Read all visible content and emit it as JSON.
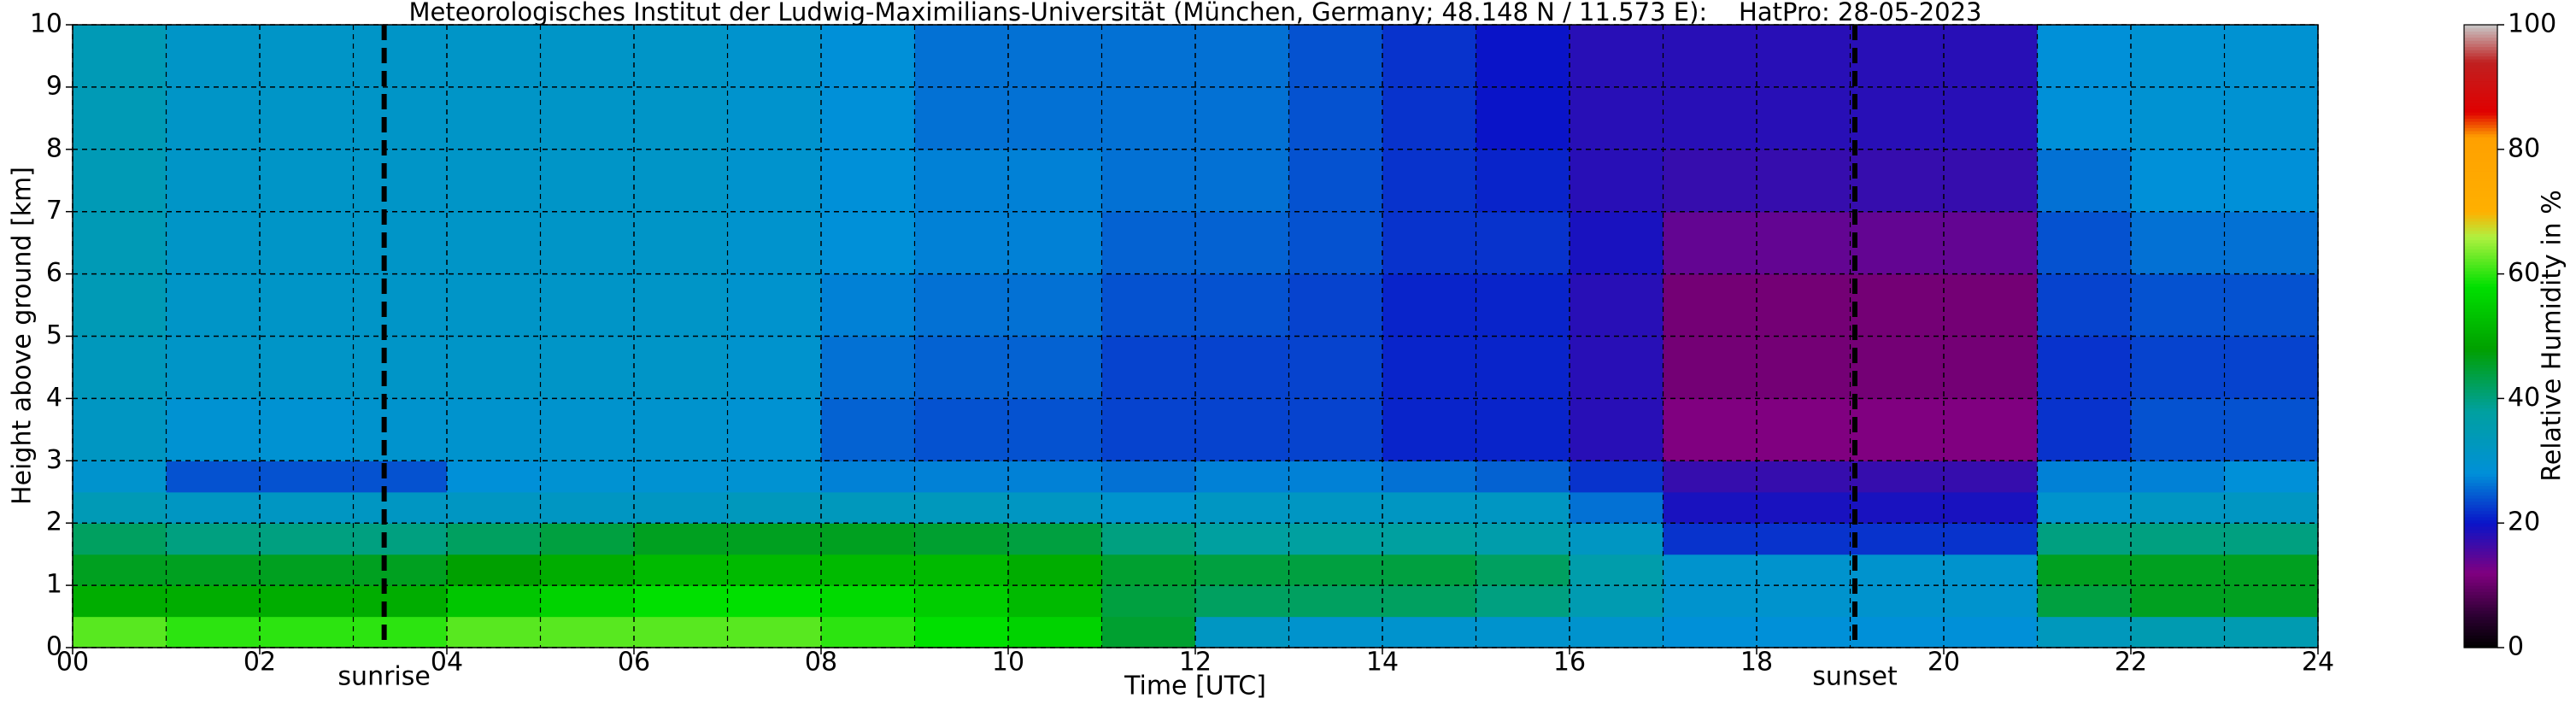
{
  "chart_data": {
    "type": "heatmap",
    "title": "Meteorologisches Institut der Ludwig-Maximilians-Universität (München, Germany; 48.148 N / 11.573 E):    HatPro: 28-05-2023",
    "xlabel": "Time [UTC]",
    "ylabel": "Height above ground [km]",
    "colorbar_label": "Relative Humidity in %",
    "xlim": [
      0,
      24
    ],
    "ylim": [
      0,
      10
    ],
    "xticks": [
      {
        "value": 0,
        "label": "00"
      },
      {
        "value": 2,
        "label": "02"
      },
      {
        "value": 4,
        "label": "04"
      },
      {
        "value": 6,
        "label": "06"
      },
      {
        "value": 8,
        "label": "08"
      },
      10,
      12,
      14,
      16,
      18,
      20,
      22,
      24
    ],
    "xminor": [
      1,
      3,
      5,
      7,
      9,
      11,
      13,
      15,
      17,
      19,
      21,
      23
    ],
    "yticks": [
      0,
      1,
      2,
      3,
      4,
      5,
      6,
      7,
      8,
      9,
      10
    ],
    "grid": true,
    "clim": [
      0,
      100
    ],
    "cticks": [
      0,
      20,
      40,
      60,
      80,
      100
    ],
    "colorscale": [
      [
        0,
        "#000000"
      ],
      [
        5,
        "#2a0030"
      ],
      [
        12,
        "#800080"
      ],
      [
        20,
        "#0a14c8"
      ],
      [
        28,
        "#0090d8"
      ],
      [
        38,
        "#00a0a0"
      ],
      [
        48,
        "#00a000"
      ],
      [
        58,
        "#00e000"
      ],
      [
        66,
        "#b0f040"
      ],
      [
        70,
        "#ffb000"
      ],
      [
        82,
        "#ffa000"
      ],
      [
        86,
        "#e00000"
      ],
      [
        94,
        "#c02020"
      ],
      [
        100,
        "#c8c8c8"
      ]
    ],
    "xbins": [
      0,
      1,
      2,
      3,
      4,
      5,
      6,
      7,
      8,
      9,
      10,
      11,
      12,
      13,
      14,
      15,
      16,
      17,
      18,
      19,
      20,
      21,
      22,
      23,
      24
    ],
    "ybins": [
      0,
      0.5,
      1,
      1.5,
      2,
      2.5,
      3,
      4,
      5,
      6,
      7,
      8,
      10
    ],
    "z": [
      [
        62,
        60,
        60,
        60,
        62,
        62,
        62,
        62,
        60,
        58,
        56,
        45,
        32,
        30,
        30,
        30,
        30,
        28,
        28,
        28,
        28,
        33,
        35,
        35
      ],
      [
        50,
        50,
        50,
        50,
        54,
        56,
        58,
        58,
        57,
        55,
        52,
        44,
        42,
        42,
        42,
        40,
        35,
        30,
        30,
        30,
        30,
        44,
        46,
        46
      ],
      [
        46,
        46,
        46,
        46,
        48,
        50,
        52,
        52,
        52,
        52,
        50,
        45,
        44,
        44,
        44,
        42,
        36,
        30,
        30,
        30,
        30,
        46,
        46,
        46
      ],
      [
        42,
        40,
        40,
        40,
        42,
        44,
        46,
        46,
        46,
        45,
        44,
        40,
        38,
        38,
        38,
        36,
        32,
        22,
        22,
        22,
        22,
        40,
        40,
        40
      ],
      [
        34,
        32,
        32,
        32,
        32,
        32,
        32,
        33,
        33,
        33,
        32,
        30,
        32,
        32,
        32,
        32,
        26,
        19,
        19,
        19,
        19,
        30,
        32,
        32
      ],
      [
        30,
        24,
        24,
        24,
        28,
        29,
        29,
        29,
        27,
        27,
        27,
        26,
        27,
        27,
        26,
        25,
        22,
        17,
        17,
        17,
        17,
        27,
        27,
        28
      ],
      [
        32,
        29,
        29,
        30,
        30,
        30,
        30,
        29,
        25,
        24,
        24,
        23,
        23,
        23,
        21,
        21,
        18,
        12,
        12,
        12,
        12,
        22,
        24,
        24
      ],
      [
        33,
        31,
        31,
        31,
        31,
        31,
        31,
        30,
        26,
        25,
        25,
        23,
        23,
        23,
        21,
        21,
        18,
        11,
        11,
        11,
        11,
        22,
        23,
        23
      ],
      [
        34,
        31,
        31,
        31,
        31,
        31,
        31,
        30,
        27,
        26,
        26,
        24,
        24,
        23,
        21,
        21,
        18,
        11,
        11,
        11,
        11,
        23,
        24,
        24
      ],
      [
        34,
        31,
        31,
        31,
        31,
        31,
        31,
        30,
        28,
        27,
        27,
        25,
        25,
        24,
        22,
        22,
        19,
        14,
        14,
        14,
        14,
        24,
        26,
        26
      ],
      [
        34,
        31,
        31,
        31,
        31,
        31,
        31,
        30,
        28,
        27,
        27,
        26,
        26,
        24,
        22,
        21,
        18,
        17,
        17,
        17,
        17,
        26,
        28,
        28
      ],
      [
        34,
        31,
        31,
        31,
        31,
        31,
        31,
        30,
        28,
        26,
        26,
        26,
        26,
        24,
        22,
        20,
        18,
        18,
        18,
        18,
        18,
        28,
        29,
        29
      ]
    ],
    "annotations": [
      {
        "x": 3.33,
        "text": "sunrise"
      },
      {
        "x": 19.05,
        "text": "sunset"
      }
    ]
  }
}
